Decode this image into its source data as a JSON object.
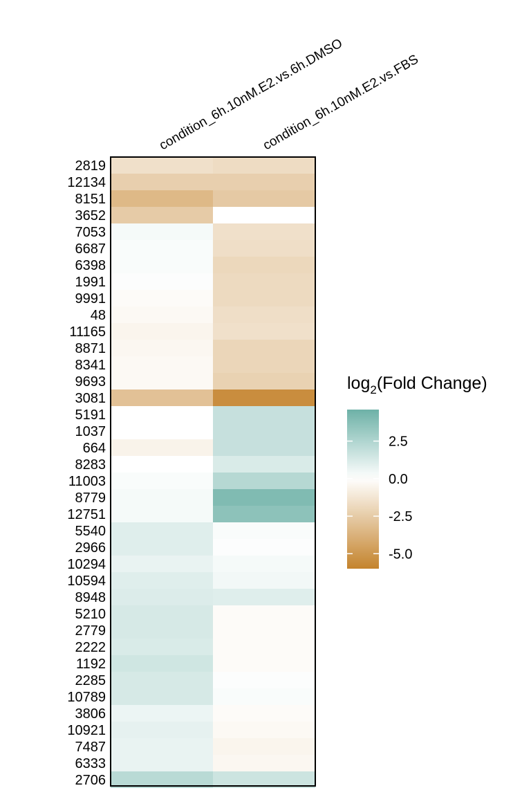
{
  "chart_data": {
    "type": "heatmap",
    "columns": [
      "condition_6h.10nM.E2.vs.6h.DMSO",
      "condition_6h.10nM.E2.vs.FBS"
    ],
    "rows": [
      "2819",
      "12134",
      "8151",
      "3652",
      "7053",
      "6687",
      "6398",
      "1991",
      "9991",
      "48",
      "11165",
      "8871",
      "8341",
      "9693",
      "3081",
      "5191",
      "1037",
      "664",
      "8283",
      "11003",
      "8779",
      "12751",
      "5540",
      "2966",
      "10294",
      "10594",
      "8948",
      "5210",
      "2779",
      "2222",
      "1192",
      "2285",
      "10789",
      "3806",
      "10921",
      "7487",
      "6333",
      "2706"
    ],
    "values": [
      [
        -1.5,
        -1.7
      ],
      [
        -2.3,
        -2.3
      ],
      [
        -3.4,
        -2.6
      ],
      [
        -2.5,
        0.0
      ],
      [
        0.3,
        -1.5
      ],
      [
        0.2,
        -1.6
      ],
      [
        0.2,
        -1.9
      ],
      [
        0.1,
        -1.8
      ],
      [
        -0.2,
        -1.8
      ],
      [
        -0.3,
        -1.6
      ],
      [
        -0.5,
        -1.5
      ],
      [
        -0.4,
        -2.0
      ],
      [
        -0.3,
        -2.0
      ],
      [
        -0.3,
        -2.2
      ],
      [
        -3.0,
        -5.5
      ],
      [
        0.0,
        1.8
      ],
      [
        0.0,
        1.8
      ],
      [
        -0.6,
        1.8
      ],
      [
        0.0,
        1.2
      ],
      [
        0.2,
        2.3
      ],
      [
        0.3,
        4.0
      ],
      [
        0.3,
        3.6
      ],
      [
        1.0,
        0.2
      ],
      [
        1.0,
        0.1
      ],
      [
        0.7,
        0.3
      ],
      [
        1.0,
        0.4
      ],
      [
        1.1,
        1.0
      ],
      [
        1.3,
        -0.2
      ],
      [
        1.3,
        -0.2
      ],
      [
        1.2,
        -0.2
      ],
      [
        1.5,
        -0.2
      ],
      [
        1.3,
        0.1
      ],
      [
        1.3,
        0.2
      ],
      [
        0.6,
        -0.2
      ],
      [
        0.8,
        -0.3
      ],
      [
        0.7,
        -0.5
      ],
      [
        0.7,
        -0.4
      ],
      [
        2.2,
        1.6
      ]
    ],
    "legend": {
      "title": "log",
      "title_sub": "2",
      "title_suffix": "(Fold Change)",
      "ticks": [
        2.5,
        0.0,
        -2.5,
        -5.0
      ],
      "tick_labels": [
        "2.5",
        "0.0",
        "-2.5",
        "-5.0"
      ],
      "range": [
        -6.0,
        4.6
      ],
      "placement": "right"
    },
    "colors": {
      "low": "#c4832c",
      "mid": "#ffffff",
      "high": "#6db1a7"
    },
    "color_range": [
      -6.0,
      4.6
    ],
    "xlabel": "",
    "ylabel": ""
  }
}
